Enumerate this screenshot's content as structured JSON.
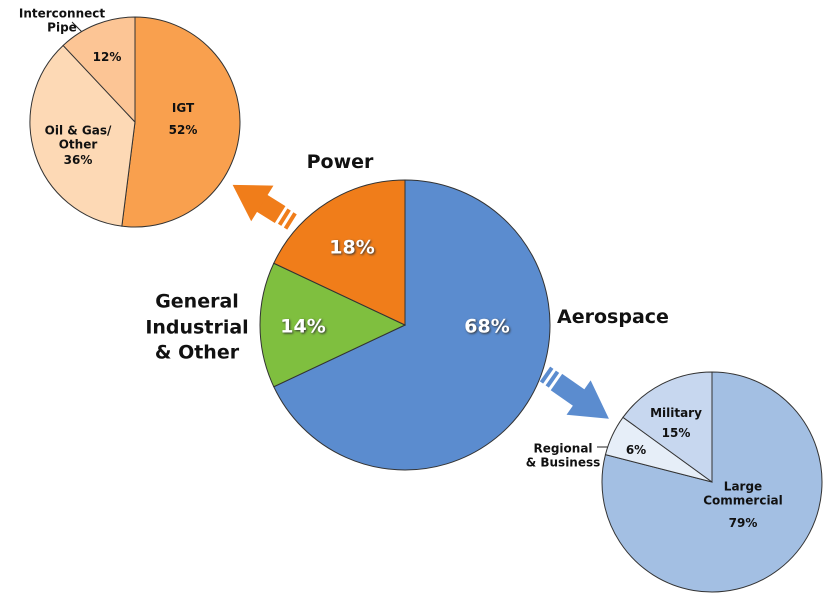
{
  "chart_data": [
    {
      "type": "pie",
      "categories": [
        "Aerospace",
        "General\nIndustrial\n& Other",
        "Power"
      ],
      "values": [
        68,
        14,
        18
      ],
      "value_labels": [
        "68%",
        "14%",
        "18%"
      ],
      "colors": [
        "#5b8ccf",
        "#7fbf3f",
        "#f07d1a"
      ]
    },
    {
      "type": "pie",
      "categories": [
        "IGT",
        "Oil & Gas/\nOther",
        "Interconnect\nPipe"
      ],
      "values": [
        52,
        36,
        12
      ],
      "value_labels": [
        "52%",
        "36%",
        "12%"
      ],
      "colors": [
        "#f9a04e",
        "#fdd9b5",
        "#fcc595"
      ]
    },
    {
      "type": "pie",
      "categories": [
        "Large\nCommercial",
        "Regional\n& Business",
        "Military"
      ],
      "values": [
        79,
        6,
        15
      ],
      "value_labels": [
        "79%",
        "6%",
        "15%"
      ],
      "colors": [
        "#a3bfe3",
        "#e6eef8",
        "#c7d7ef"
      ]
    }
  ]
}
